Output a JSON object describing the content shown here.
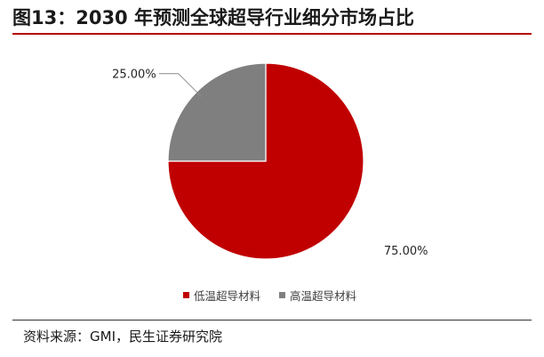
{
  "figure": {
    "title": "图13：2030 年预测全球超导行业细分市场占比",
    "source": "资料来源：GMI，民生证券研究院"
  },
  "colors": {
    "accent_rule": "#b80000",
    "series": [
      "#c00000",
      "#7f7f7f"
    ]
  },
  "chart_data": {
    "type": "pie",
    "title": "",
    "categories": [
      "低温超导材料",
      "高温超导材料"
    ],
    "values": [
      75.0,
      25.0
    ],
    "labels": [
      "75.00%",
      "25.00%"
    ],
    "start_angle": "12 o'clock, clockwise",
    "legend_position": "bottom-center"
  }
}
